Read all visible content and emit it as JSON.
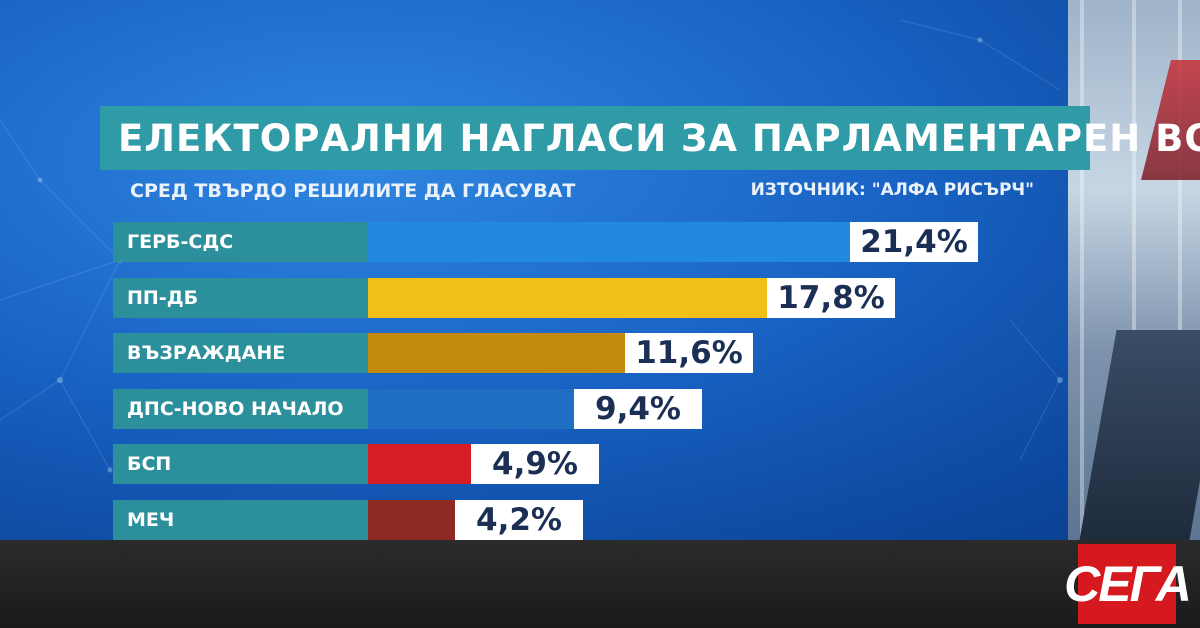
{
  "title": "ЕЛЕКТОРАЛНИ НАГЛАСИ ЗА ПАРЛАМЕНТАРЕН ВОТ",
  "subtitle": "СРЕД ТВЪРДО РЕШИЛИТЕ ДА ГЛАСУВАТ",
  "source": "ИЗТОЧНИК: \"АЛФА РИСЪРЧ\"",
  "logo": "СЕГА",
  "colors": {
    "title_bg": "#2f9ba6",
    "label_bg": "#2c8f9c",
    "value_text": "#1b2f55",
    "logo_bg": "#d6181f"
  },
  "chart_data": {
    "type": "bar",
    "orientation": "horizontal",
    "categories": [
      "ГЕРБ-СДС",
      "ПП-ДБ",
      "ВЪЗРАЖДАНЕ",
      "ДПС-НОВО НАЧАЛО",
      "БСП",
      "МЕЧ"
    ],
    "values": [
      21.4,
      17.8,
      11.6,
      9.4,
      4.9,
      4.2
    ],
    "value_labels": [
      "21,4%",
      "17,8%",
      "11,6%",
      "9,4%",
      "4,9%",
      "4,2%"
    ],
    "bar_colors": [
      "#2189e0",
      "#f2bf16",
      "#c48a0f",
      "#1e6fc4",
      "#d61d25",
      "#8e2a24"
    ],
    "title": "ЕЛЕКТОРАЛНИ НАГЛАСИ ЗА ПАРЛАМЕНТАРЕН ВОТ",
    "xlabel": "",
    "ylabel": "",
    "xlim": [
      0,
      25
    ],
    "grid": false
  }
}
